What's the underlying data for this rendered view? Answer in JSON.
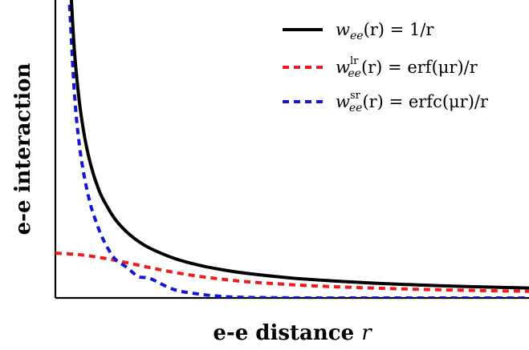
{
  "chart_data": {
    "type": "line",
    "xlabel": "e-e distance",
    "xlabel_var": "r",
    "ylabel": "e-e interaction",
    "xlim": [
      0.0,
      10.0
    ],
    "ylim": [
      0.0,
      3.0
    ],
    "grid": false,
    "legend_placement": "top-right",
    "series": [
      {
        "key": "coulomb",
        "name": "w_ee(r) = 1/r",
        "legend": {
          "func": "w",
          "sub": "ee",
          "sup": "",
          "arg": "(r)",
          "eq": " = ",
          "rhs": "1/r"
        },
        "color": "#000000",
        "style": "solid",
        "x": [
          0.3,
          0.4,
          0.5,
          0.6,
          0.7,
          0.8,
          0.9,
          1.0,
          1.25,
          1.5,
          1.75,
          2.0,
          2.5,
          3.0,
          3.5,
          4.0,
          5.0,
          6.0,
          7.0,
          8.0,
          9.0,
          10.0
        ],
        "y": [
          3.333,
          2.5,
          2.0,
          1.667,
          1.429,
          1.25,
          1.111,
          1.0,
          0.8,
          0.667,
          0.571,
          0.5,
          0.4,
          0.333,
          0.286,
          0.25,
          0.2,
          0.167,
          0.143,
          0.125,
          0.111,
          0.1
        ]
      },
      {
        "key": "long_range",
        "name": "w_ee^lr(r) = erf(μr)/r",
        "legend": {
          "func": "w",
          "sub": "ee",
          "sup": "lr",
          "arg": "(r)",
          "eq": " = ",
          "rhs": "erf(μr)/r"
        },
        "color": "#ee1c1c",
        "style": "dashed",
        "x": [
          0.0,
          0.5,
          1.0,
          1.5,
          2.0,
          2.5,
          3.0,
          3.5,
          4.0,
          5.0,
          6.0,
          7.0,
          8.0,
          9.0,
          10.0
        ],
        "y": [
          0.451,
          0.436,
          0.402,
          0.356,
          0.305,
          0.258,
          0.22,
          0.19,
          0.165,
          0.133,
          0.111,
          0.095,
          0.083,
          0.074,
          0.067
        ]
      },
      {
        "key": "short_range",
        "name": "w_ee^sr(r) = erfc(μr)/r",
        "legend": {
          "func": "w",
          "sub": "ee",
          "sup": "sr",
          "arg": "(r)",
          "eq": " = ",
          "rhs": "erfc(μr)/r"
        },
        "color": "#1515d8",
        "style": "dashed",
        "x": [
          0.3,
          0.4,
          0.5,
          0.6,
          0.7,
          0.8,
          1.0,
          1.25,
          1.5,
          1.75,
          2.0,
          2.5,
          3.0,
          3.5,
          4.0,
          5.0,
          6.0,
          8.0,
          10.0
        ],
        "y": [
          2.952,
          2.074,
          1.564,
          1.249,
          1.019,
          0.848,
          0.598,
          0.398,
          0.311,
          0.216,
          0.195,
          0.085,
          0.041,
          0.016,
          0.006,
          0.001,
          0.0,
          0.0,
          0.0
        ]
      }
    ]
  }
}
